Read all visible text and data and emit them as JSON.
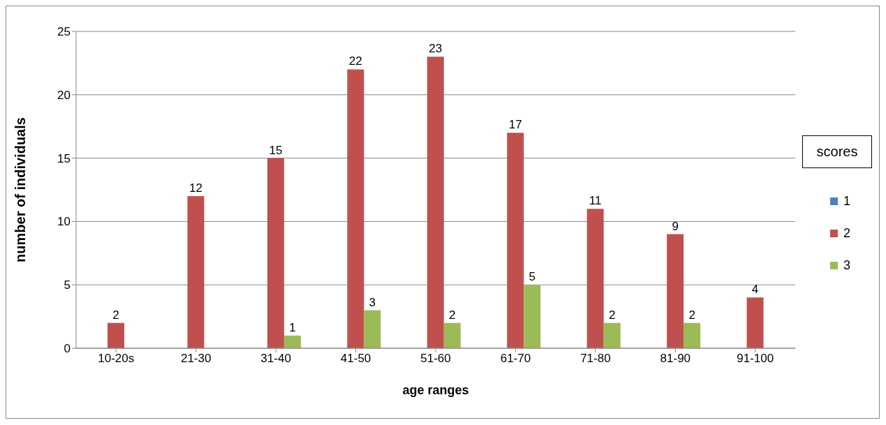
{
  "chart_data": {
    "type": "bar",
    "xlabel": "age ranges",
    "ylabel": "number of individuals",
    "legend_title": "scores",
    "categories": [
      "10-20s",
      "21-30",
      "31-40",
      "41-50",
      "51-60",
      "61-70",
      "71-80",
      "81-90",
      "91-100"
    ],
    "series": [
      {
        "name": "1",
        "color": "#4f81bd",
        "values": [
          0,
          0,
          0,
          0,
          0,
          0,
          0,
          0,
          0
        ],
        "value_labels": [
          null,
          null,
          null,
          null,
          null,
          null,
          null,
          null,
          null
        ]
      },
      {
        "name": "2",
        "color": "#c0504d",
        "values": [
          2,
          12,
          15,
          22,
          23,
          17,
          11,
          9,
          4
        ],
        "value_labels": [
          "2",
          "12",
          "15",
          "22",
          "23",
          "17",
          "11",
          "9",
          "4"
        ]
      },
      {
        "name": "3",
        "color": "#9bbb59",
        "values": [
          0,
          0,
          1,
          3,
          2,
          5,
          2,
          2,
          0
        ],
        "value_labels": [
          null,
          null,
          "1",
          "3",
          "2",
          "5",
          "2",
          "2",
          null
        ]
      }
    ],
    "ylim": [
      0,
      25
    ],
    "yticks": [
      0,
      5,
      10,
      15,
      20,
      25
    ],
    "grid": "y",
    "legend": "right"
  }
}
